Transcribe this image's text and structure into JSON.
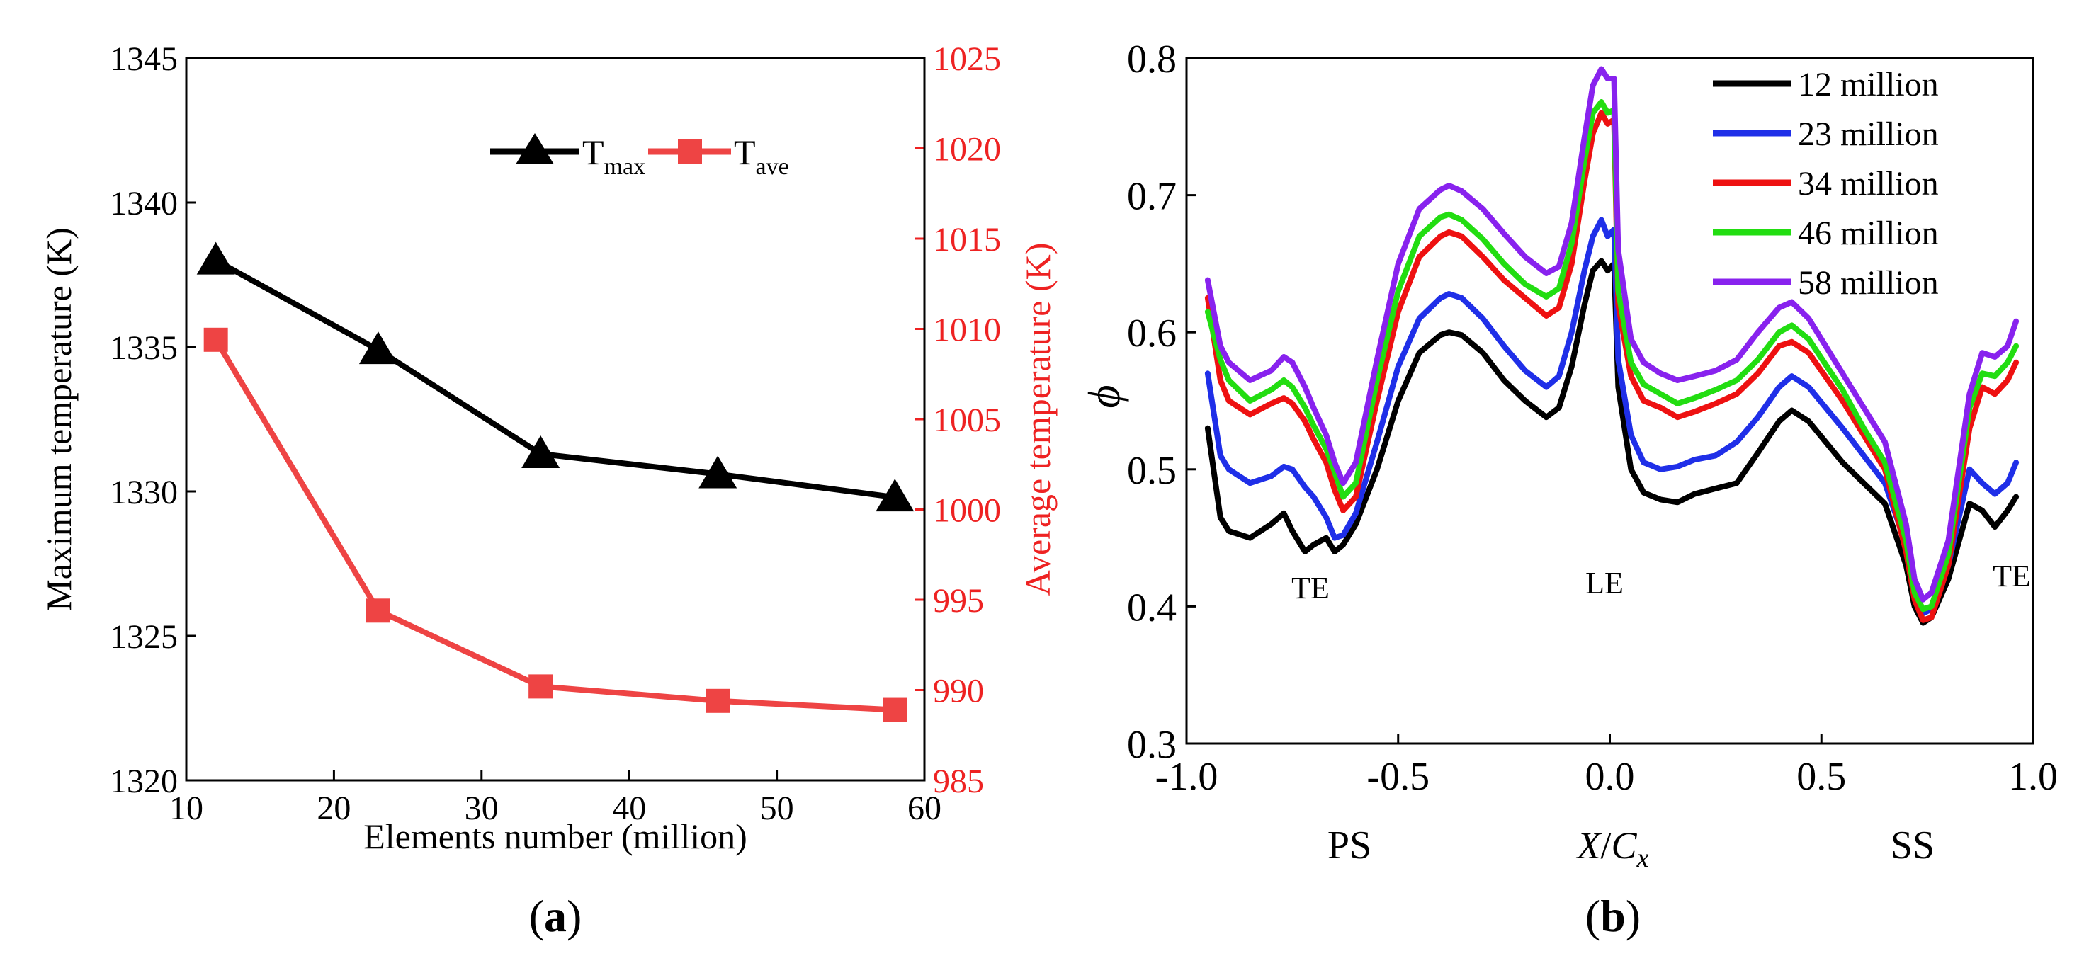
{
  "chart_data": [
    {
      "panel": "(a)",
      "type": "line",
      "xlabel": "Elements number (million)",
      "ylabel": "Maximum temperature (K)",
      "y2label": "Average temperature (K)",
      "xlim": [
        10,
        60
      ],
      "ylim": [
        1320,
        1345
      ],
      "y2lim": [
        985,
        1025
      ],
      "xticks": [
        "10",
        "20",
        "30",
        "40",
        "50",
        "60"
      ],
      "yticks": [
        "1320",
        "1325",
        "1330",
        "1335",
        "1340",
        "1345"
      ],
      "y2ticks": [
        "985",
        "990",
        "995",
        "1000",
        "1005",
        "1010",
        "1015",
        "1020",
        "1025"
      ],
      "legend_position": "top-right",
      "series": [
        {
          "name": "T",
          "subscript": "max",
          "axis": "left",
          "marker": "triangle",
          "color": "#000000",
          "x": [
            12,
            23,
            34,
            46,
            58
          ],
          "values": [
            1338.0,
            1334.9,
            1331.3,
            1330.6,
            1329.8
          ]
        },
        {
          "name": "T",
          "subscript": "ave",
          "axis": "right",
          "marker": "square",
          "color": "#ee4444",
          "x": [
            12,
            23,
            34,
            46,
            58
          ],
          "values": [
            1009.4,
            994.4,
            990.2,
            989.4,
            988.9
          ]
        }
      ]
    },
    {
      "panel": "(b)",
      "type": "line",
      "xlabel_main": "X",
      "xlabel_sub": "C",
      "xlabel_subscript": "x",
      "ylabel": "ϕ",
      "xlim": [
        -1.0,
        1.0
      ],
      "ylim": [
        0.3,
        0.8
      ],
      "xticks": [
        "-1.0",
        "-0.5",
        "0.0",
        "0.5",
        "1.0"
      ],
      "yticks": [
        "0.3",
        "0.4",
        "0.5",
        "0.6",
        "0.7",
        "0.8"
      ],
      "region_labels": [
        "PS",
        "SS"
      ],
      "annotations": [
        "TE",
        "LE",
        "TE"
      ],
      "legend_position": "top-right",
      "x": [
        -0.95,
        -0.92,
        -0.9,
        -0.85,
        -0.8,
        -0.77,
        -0.75,
        -0.72,
        -0.7,
        -0.67,
        -0.65,
        -0.63,
        -0.6,
        -0.55,
        -0.5,
        -0.45,
        -0.4,
        -0.38,
        -0.35,
        -0.3,
        -0.25,
        -0.2,
        -0.15,
        -0.12,
        -0.09,
        -0.06,
        -0.04,
        -0.02,
        -0.005,
        0.01,
        0.02,
        0.05,
        0.08,
        0.12,
        0.16,
        0.2,
        0.25,
        0.3,
        0.35,
        0.4,
        0.43,
        0.47,
        0.55,
        0.6,
        0.65,
        0.7,
        0.72,
        0.74,
        0.76,
        0.8,
        0.85,
        0.88,
        0.91,
        0.94,
        0.96
      ],
      "series": [
        {
          "name": "12 million",
          "color": "#000000",
          "values": [
            0.53,
            0.465,
            0.455,
            0.45,
            0.46,
            0.468,
            0.455,
            0.44,
            0.445,
            0.45,
            0.44,
            0.445,
            0.46,
            0.5,
            0.55,
            0.585,
            0.598,
            0.6,
            0.598,
            0.585,
            0.565,
            0.55,
            0.538,
            0.545,
            0.575,
            0.62,
            0.645,
            0.652,
            0.645,
            0.65,
            0.56,
            0.5,
            0.483,
            0.478,
            0.476,
            0.482,
            0.486,
            0.49,
            0.512,
            0.535,
            0.543,
            0.535,
            0.505,
            0.49,
            0.475,
            0.43,
            0.4,
            0.388,
            0.392,
            0.42,
            0.475,
            0.47,
            0.458,
            0.47,
            0.48
          ]
        },
        {
          "name": "23 million",
          "color": "#1f2fe8",
          "values": [
            0.57,
            0.51,
            0.5,
            0.49,
            0.495,
            0.502,
            0.5,
            0.487,
            0.48,
            0.465,
            0.45,
            0.452,
            0.468,
            0.52,
            0.575,
            0.61,
            0.625,
            0.628,
            0.625,
            0.61,
            0.59,
            0.572,
            0.56,
            0.568,
            0.6,
            0.645,
            0.67,
            0.682,
            0.67,
            0.675,
            0.58,
            0.525,
            0.505,
            0.5,
            0.502,
            0.507,
            0.51,
            0.52,
            0.538,
            0.56,
            0.568,
            0.56,
            0.53,
            0.51,
            0.49,
            0.445,
            0.41,
            0.395,
            0.398,
            0.43,
            0.5,
            0.49,
            0.482,
            0.49,
            0.505
          ]
        },
        {
          "name": "34 million",
          "color": "#ee1111",
          "values": [
            0.625,
            0.565,
            0.55,
            0.54,
            0.548,
            0.552,
            0.548,
            0.535,
            0.522,
            0.505,
            0.485,
            0.47,
            0.48,
            0.55,
            0.615,
            0.655,
            0.67,
            0.673,
            0.67,
            0.655,
            0.638,
            0.625,
            0.612,
            0.618,
            0.65,
            0.71,
            0.745,
            0.76,
            0.752,
            0.755,
            0.62,
            0.568,
            0.55,
            0.545,
            0.538,
            0.542,
            0.548,
            0.555,
            0.57,
            0.59,
            0.593,
            0.585,
            0.55,
            0.525,
            0.5,
            0.44,
            0.405,
            0.39,
            0.392,
            0.43,
            0.53,
            0.56,
            0.555,
            0.565,
            0.578
          ]
        },
        {
          "name": "46 million",
          "color": "#22dd11",
          "values": [
            0.615,
            0.58,
            0.565,
            0.55,
            0.558,
            0.565,
            0.56,
            0.545,
            0.532,
            0.515,
            0.498,
            0.48,
            0.49,
            0.565,
            0.63,
            0.67,
            0.684,
            0.686,
            0.682,
            0.668,
            0.65,
            0.635,
            0.626,
            0.632,
            0.665,
            0.725,
            0.76,
            0.768,
            0.76,
            0.762,
            0.63,
            0.578,
            0.562,
            0.555,
            0.548,
            0.552,
            0.558,
            0.565,
            0.58,
            0.6,
            0.605,
            0.595,
            0.558,
            0.53,
            0.505,
            0.448,
            0.41,
            0.398,
            0.4,
            0.438,
            0.545,
            0.57,
            0.568,
            0.578,
            0.59
          ]
        },
        {
          "name": "58 million",
          "color": "#8822ee",
          "values": [
            0.638,
            0.59,
            0.578,
            0.565,
            0.572,
            0.582,
            0.578,
            0.56,
            0.545,
            0.525,
            0.505,
            0.49,
            0.505,
            0.58,
            0.65,
            0.69,
            0.704,
            0.707,
            0.703,
            0.69,
            0.672,
            0.655,
            0.643,
            0.648,
            0.68,
            0.742,
            0.78,
            0.792,
            0.785,
            0.785,
            0.66,
            0.595,
            0.578,
            0.57,
            0.565,
            0.568,
            0.572,
            0.58,
            0.6,
            0.618,
            0.622,
            0.61,
            0.57,
            0.545,
            0.52,
            0.46,
            0.42,
            0.405,
            0.41,
            0.448,
            0.555,
            0.585,
            0.582,
            0.59,
            0.608
          ]
        }
      ]
    }
  ],
  "captions": [
    "a",
    "b"
  ]
}
